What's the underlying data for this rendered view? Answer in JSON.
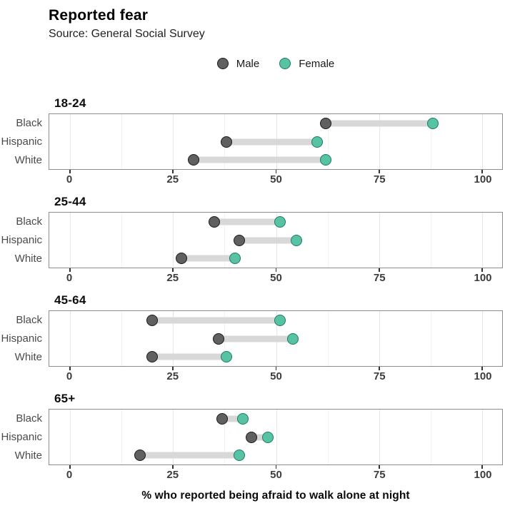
{
  "title": "Reported fear",
  "subtitle": "Source: General Social Survey",
  "legend": [
    {
      "name": "male",
      "label": "Male"
    },
    {
      "name": "female",
      "label": "Female"
    }
  ],
  "colors": {
    "male_fill": "#606060",
    "male_stroke": "#1a1a1a",
    "female_fill": "#57c3a4",
    "female_stroke": "#1f7a60",
    "segment": "#d8d8d8",
    "panel_border": "#8c8c8c",
    "grid_major": "#e6e6e6",
    "grid_minor": "#f2f2f2"
  },
  "chart_data": {
    "type": "dumbbell",
    "title": "Reported fear",
    "subtitle": "Source: General Social Survey",
    "xlabel": "% who reported being afraid to walk alone at night",
    "xlim": [
      0,
      100
    ],
    "x_ticks": [
      0,
      25,
      50,
      75,
      100
    ],
    "x_minor_ticks": [
      12.5,
      37.5,
      62.5,
      87.5
    ],
    "grid": true,
    "legend_position": "top-center",
    "series": [
      "Male",
      "Female"
    ],
    "facets": [
      {
        "age_group": "18-24",
        "rows": [
          {
            "race": "Black",
            "male": 62,
            "female": 88
          },
          {
            "race": "Hispanic",
            "male": 38,
            "female": 60
          },
          {
            "race": "White",
            "male": 30,
            "female": 62
          }
        ]
      },
      {
        "age_group": "25-44",
        "rows": [
          {
            "race": "Black",
            "male": 35,
            "female": 51
          },
          {
            "race": "Hispanic",
            "male": 41,
            "female": 55
          },
          {
            "race": "White",
            "male": 27,
            "female": 40
          }
        ]
      },
      {
        "age_group": "45-64",
        "rows": [
          {
            "race": "Black",
            "male": 20,
            "female": 51
          },
          {
            "race": "Hispanic",
            "male": 36,
            "female": 54
          },
          {
            "race": "White",
            "male": 20,
            "female": 38
          }
        ]
      },
      {
        "age_group": "65+",
        "rows": [
          {
            "race": "Black",
            "male": 37,
            "female": 42
          },
          {
            "race": "Hispanic",
            "male": 44,
            "female": 48
          },
          {
            "race": "White",
            "male": 17,
            "female": 41
          }
        ]
      }
    ]
  }
}
